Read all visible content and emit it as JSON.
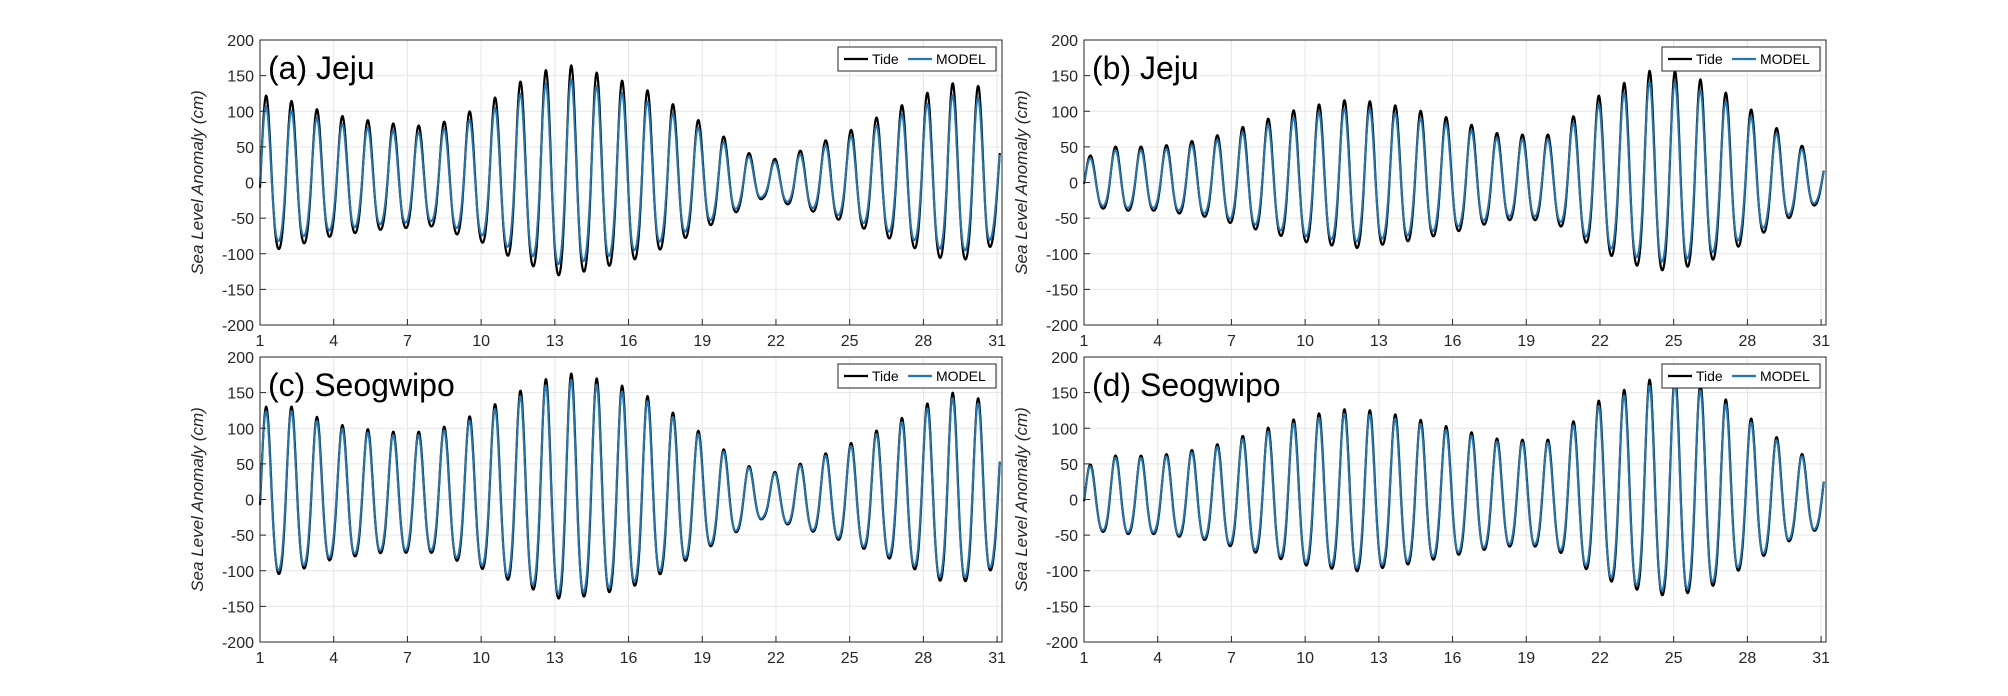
{
  "chart_data": [
    {
      "type": "line",
      "title": "(a) Jeju",
      "ylabel": "Sea Level Anomaly (cm)",
      "xlabel": "",
      "xlim": [
        1,
        31.2
      ],
      "ylim": [
        -200,
        200
      ],
      "xticks": [
        1,
        4,
        7,
        10,
        13,
        16,
        19,
        22,
        25,
        28,
        31
      ],
      "yticks": [
        -200,
        -150,
        -100,
        -50,
        0,
        50,
        100,
        150,
        200
      ],
      "grid": true,
      "legend_position": "top-right",
      "envelope_days": [
        1,
        2,
        4,
        6,
        8,
        10,
        11.5,
        13.3,
        15,
        16.5,
        18,
        20,
        21.5,
        23,
        25,
        27,
        29,
        30.5,
        31.1
      ],
      "envelope_amp": [
        110,
        105,
        85,
        75,
        70,
        95,
        125,
        150,
        135,
        120,
        95,
        55,
        25,
        40,
        65,
        95,
        125,
        120,
        75
      ],
      "series": [
        {
          "name": "Tide",
          "color": "#000000",
          "amp_scale": 1.0,
          "phase": 0.0
        },
        {
          "name": "MODEL",
          "color": "#1f77b4",
          "amp_scale": 0.88,
          "phase": 0.05
        }
      ]
    },
    {
      "type": "line",
      "title": "(b) Jeju",
      "ylabel": "Sea Level Anomaly (cm)",
      "xlabel": "",
      "xlim": [
        1,
        31.2
      ],
      "ylim": [
        -200,
        200
      ],
      "xticks": [
        1,
        4,
        7,
        10,
        13,
        16,
        19,
        22,
        25,
        28,
        31
      ],
      "yticks": [
        -200,
        -150,
        -100,
        -50,
        0,
        50,
        100,
        150,
        200
      ],
      "grid": true,
      "legend_position": "top-right",
      "envelope_days": [
        1,
        2,
        4,
        6,
        8,
        10,
        12,
        14,
        16,
        18,
        20,
        22,
        24,
        25,
        26.5,
        28,
        30,
        31.1
      ],
      "envelope_amp": [
        30,
        45,
        45,
        55,
        75,
        95,
        105,
        95,
        80,
        60,
        60,
        110,
        140,
        140,
        125,
        95,
        50,
        30
      ],
      "series": [
        {
          "name": "Tide",
          "color": "#000000",
          "amp_scale": 1.0,
          "phase": 0.0
        },
        {
          "name": "MODEL",
          "color": "#1f77b4",
          "amp_scale": 0.9,
          "phase": 0.05
        }
      ]
    },
    {
      "type": "line",
      "title": "(c) Seogwipo",
      "ylabel": "Sea Level Anomaly (cm)",
      "xlabel": "",
      "xlim": [
        1,
        31.2
      ],
      "ylim": [
        -200,
        200
      ],
      "xticks": [
        1,
        4,
        7,
        10,
        13,
        16,
        19,
        22,
        25,
        28,
        31
      ],
      "yticks": [
        -200,
        -150,
        -100,
        -50,
        0,
        50,
        100,
        150,
        200
      ],
      "grid": true,
      "legend_position": "top-right",
      "envelope_days": [
        1,
        2,
        4,
        6,
        8,
        10,
        11.5,
        13.3,
        15,
        16.5,
        18,
        20,
        21.5,
        23,
        25,
        27,
        29,
        30.5,
        31.1
      ],
      "envelope_amp": [
        115,
        120,
        95,
        85,
        85,
        110,
        135,
        160,
        150,
        135,
        105,
        60,
        30,
        45,
        70,
        100,
        135,
        125,
        95
      ],
      "series": [
        {
          "name": "Tide",
          "color": "#000000",
          "amp_scale": 1.0,
          "phase": 0.0
        },
        {
          "name": "MODEL",
          "color": "#1f77b4",
          "amp_scale": 0.95,
          "phase": 0.05
        }
      ]
    },
    {
      "type": "line",
      "title": "(d) Seogwipo",
      "ylabel": "Sea Level Anomaly (cm)",
      "xlabel": "",
      "xlim": [
        1,
        31.2
      ],
      "ylim": [
        -200,
        200
      ],
      "xticks": [
        1,
        4,
        7,
        10,
        13,
        16,
        19,
        22,
        25,
        28,
        31
      ],
      "yticks": [
        -200,
        -150,
        -100,
        -50,
        0,
        50,
        100,
        150,
        200
      ],
      "grid": true,
      "legend_position": "top-right",
      "envelope_days": [
        1,
        2,
        4,
        6,
        8,
        10,
        12,
        14,
        16,
        18,
        20,
        22,
        24,
        25,
        26.5,
        28,
        30,
        31.1
      ],
      "envelope_amp": [
        40,
        55,
        55,
        65,
        85,
        105,
        115,
        105,
        90,
        75,
        75,
        125,
        150,
        155,
        140,
        105,
        60,
        45
      ],
      "series": [
        {
          "name": "Tide",
          "color": "#000000",
          "amp_scale": 1.0,
          "phase": 0.0
        },
        {
          "name": "MODEL",
          "color": "#1f77b4",
          "amp_scale": 0.95,
          "phase": 0.05
        }
      ]
    }
  ]
}
